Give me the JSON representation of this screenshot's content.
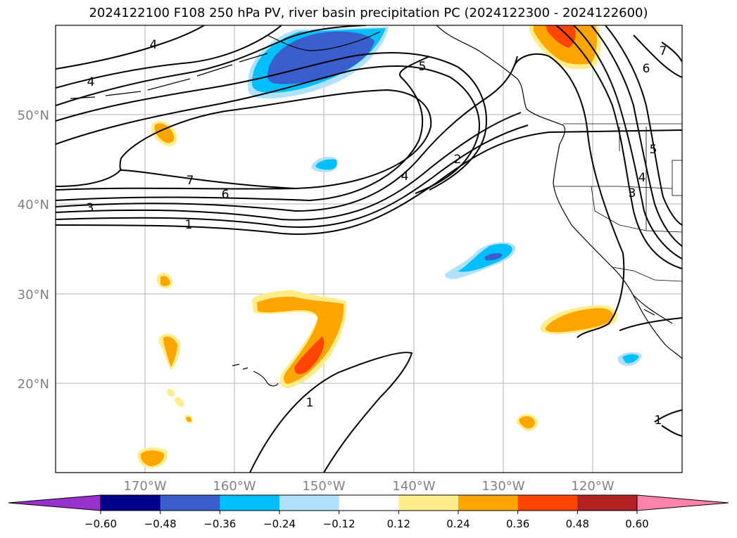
{
  "title": "2024122100 F108 250 hPa PV, river basin precipitation PC (2024122300 - 2024122600)",
  "lon_labels": [
    "170°W",
    "160°W",
    "150°W",
    "140°W",
    "130°W",
    "120°W"
  ],
  "lat_labels": [
    "50°N",
    "40°N",
    "30°N",
    "20°N"
  ],
  "contour_labels": [
    {
      "name": "contour-label-4-nw",
      "text": "4"
    },
    {
      "name": "contour-label-4-w",
      "text": "4"
    },
    {
      "name": "contour-label-5",
      "text": "5"
    },
    {
      "name": "contour-label-7",
      "text": "7"
    },
    {
      "name": "contour-label-6",
      "text": "6"
    },
    {
      "name": "contour-label-3-w",
      "text": "3"
    },
    {
      "name": "contour-label-1-w",
      "text": "1"
    },
    {
      "name": "contour-label-4-c",
      "text": "4"
    },
    {
      "name": "contour-label-2",
      "text": "2"
    },
    {
      "name": "contour-label-1-s",
      "text": "1"
    },
    {
      "name": "contour-label-7-ne",
      "text": "7"
    },
    {
      "name": "contour-label-6-ne",
      "text": "6"
    },
    {
      "name": "contour-label-5-e",
      "text": "5"
    },
    {
      "name": "contour-label-4-e",
      "text": "4"
    },
    {
      "name": "contour-label-3-e",
      "text": "3"
    },
    {
      "name": "contour-label-1-se",
      "text": "1"
    }
  ],
  "colorbar": {
    "ticks": [
      "−0.60",
      "−0.48",
      "−0.36",
      "−0.24",
      "−0.12",
      "0.12",
      "0.24",
      "0.36",
      "0.48",
      "0.60"
    ],
    "colors": [
      "#9932cc",
      "#00008b",
      "#3a5fcd",
      "#00bfff",
      "#b0e2ff",
      "#ffffff",
      "#ffec8b",
      "#ffa500",
      "#ff4500",
      "#b22222",
      "#ff82ab"
    ]
  }
}
